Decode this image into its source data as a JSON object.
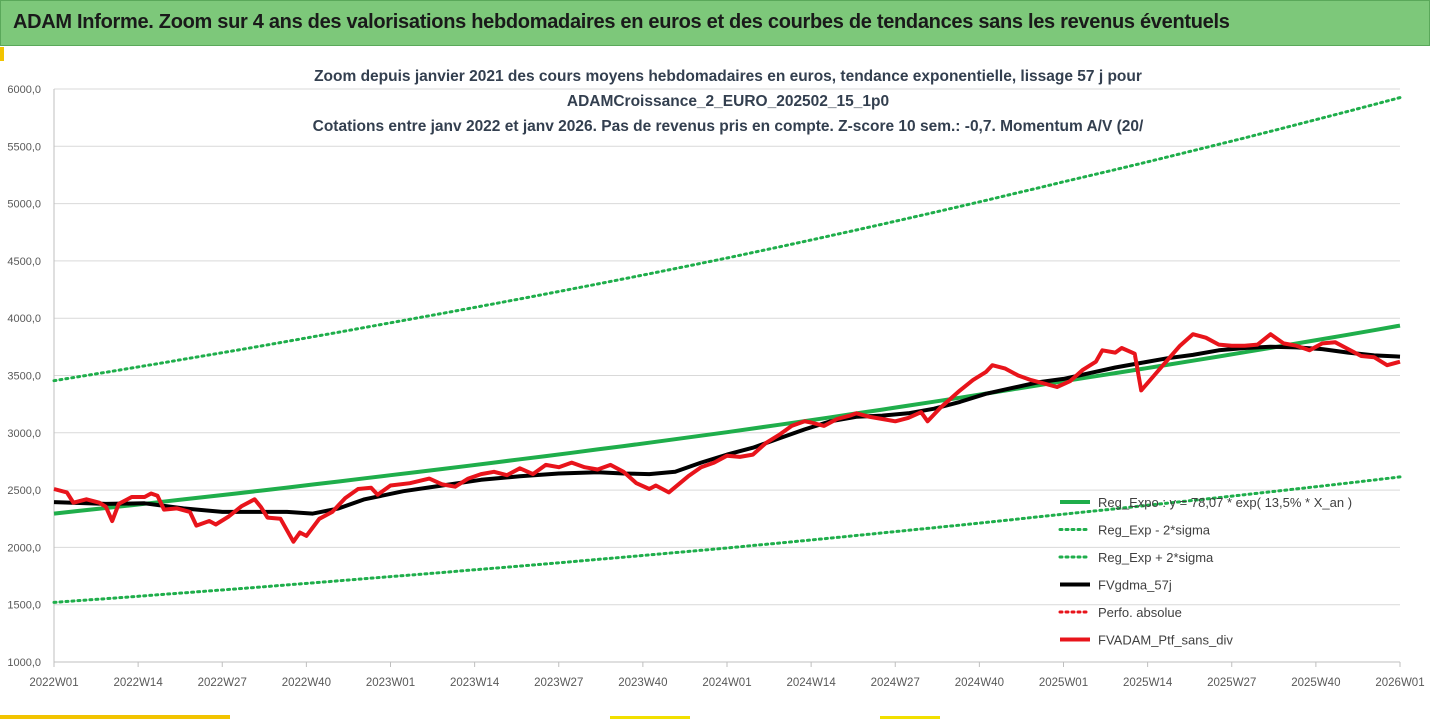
{
  "banner": {
    "title": "ADAM Informe. Zoom sur 4 ans des valorisations hebdomadaires en euros et des courbes de tendances sans les revenus éventuels"
  },
  "colors": {
    "green": "#1fae4b",
    "black": "#000000",
    "red": "#e8141b",
    "banner": "#7dc87a",
    "grid": "#d9d9d9"
  },
  "chart_data": {
    "type": "line",
    "title": [
      "Zoom depuis janvier 2021 des cours moyens hebdomadaires  en euros, tendance exponentielle, lissage 57 j pour",
      "ADAMCroissance_2_EURO_202502_15_1p0",
      "Cotations entre janv 2022 et janv 2026. Pas de revenus pris en compte. Z-score 10 sem.: -0,7. Momentum A/V (20/"
    ],
    "xlabel": "",
    "ylabel": "",
    "ylim": [
      1000,
      6000
    ],
    "yticks": [
      "1000,0",
      "1500,0",
      "2000,0",
      "2500,0",
      "3000,0",
      "3500,0",
      "4000,0",
      "4500,0",
      "5000,0",
      "5500,0",
      "6000,0"
    ],
    "x_range": [
      0,
      208
    ],
    "xticks": [
      {
        "pos": 0,
        "label": "2022W01"
      },
      {
        "pos": 13,
        "label": "2022W14"
      },
      {
        "pos": 26,
        "label": "2022W27"
      },
      {
        "pos": 39,
        "label": "2022W40"
      },
      {
        "pos": 52,
        "label": "2023W01"
      },
      {
        "pos": 65,
        "label": "2023W14"
      },
      {
        "pos": 78,
        "label": "2023W27"
      },
      {
        "pos": 91,
        "label": "2023W40"
      },
      {
        "pos": 104,
        "label": "2024W01"
      },
      {
        "pos": 117,
        "label": "2024W14"
      },
      {
        "pos": 130,
        "label": "2024W27"
      },
      {
        "pos": 143,
        "label": "2024W40"
      },
      {
        "pos": 156,
        "label": "2025W01"
      },
      {
        "pos": 169,
        "label": "2025W14"
      },
      {
        "pos": 182,
        "label": "2025W27"
      },
      {
        "pos": 195,
        "label": "2025W40"
      },
      {
        "pos": 208,
        "label": "2026W01"
      }
    ],
    "legend": [
      {
        "label": "Reg_Expo : y = 78,07 * exp( 13,5% *  X_an )",
        "color": "#1fae4b",
        "style": "solid",
        "width": 4
      },
      {
        "label": "Reg_Exp - 2*sigma",
        "color": "#1fae4b",
        "style": "dotted",
        "width": 3
      },
      {
        "label": "Reg_Exp + 2*sigma",
        "color": "#1fae4b",
        "style": "dotted",
        "width": 3
      },
      {
        "label": "FVgdma_57j",
        "color": "#000000",
        "style": "solid",
        "width": 4
      },
      {
        "label": "Perfo. absolue",
        "color": "#e8141b",
        "style": "dotted",
        "width": 3
      },
      {
        "label": "FVADAM_Ptf_sans_div",
        "color": "#e8141b",
        "style": "solid",
        "width": 4
      }
    ],
    "series": [
      {
        "name": "Reg_Expo",
        "color": "#1fae4b",
        "style": "solid",
        "width": 4,
        "points": [
          [
            0,
            2295
          ],
          [
            52,
            2630
          ],
          [
            104,
            3005
          ],
          [
            156,
            3450
          ],
          [
            208,
            3935
          ]
        ]
      },
      {
        "name": "Reg_Exp - 2*sigma",
        "color": "#1fae4b",
        "style": "dotted",
        "width": 3,
        "points": [
          [
            0,
            1520
          ],
          [
            52,
            1745
          ],
          [
            104,
            1995
          ],
          [
            156,
            2290
          ],
          [
            208,
            2615
          ]
        ]
      },
      {
        "name": "Reg_Exp + 2*sigma",
        "color": "#1fae4b",
        "style": "dotted",
        "width": 3,
        "points": [
          [
            0,
            3455
          ],
          [
            52,
            3960
          ],
          [
            104,
            4525
          ],
          [
            156,
            5190
          ],
          [
            208,
            5925
          ]
        ]
      },
      {
        "name": "FVgdma_57j",
        "color": "#000000",
        "style": "solid",
        "width": 4,
        "points": [
          [
            0,
            2395
          ],
          [
            8,
            2380
          ],
          [
            14,
            2385
          ],
          [
            20,
            2340
          ],
          [
            26,
            2310
          ],
          [
            30,
            2310
          ],
          [
            36,
            2310
          ],
          [
            40,
            2295
          ],
          [
            44,
            2340
          ],
          [
            48,
            2420
          ],
          [
            54,
            2490
          ],
          [
            60,
            2540
          ],
          [
            66,
            2590
          ],
          [
            72,
            2620
          ],
          [
            78,
            2645
          ],
          [
            84,
            2655
          ],
          [
            88,
            2645
          ],
          [
            92,
            2640
          ],
          [
            96,
            2660
          ],
          [
            100,
            2740
          ],
          [
            104,
            2810
          ],
          [
            108,
            2870
          ],
          [
            112,
            2950
          ],
          [
            116,
            3030
          ],
          [
            120,
            3100
          ],
          [
            124,
            3140
          ],
          [
            128,
            3150
          ],
          [
            132,
            3170
          ],
          [
            136,
            3210
          ],
          [
            140,
            3270
          ],
          [
            144,
            3340
          ],
          [
            148,
            3390
          ],
          [
            152,
            3440
          ],
          [
            156,
            3470
          ],
          [
            160,
            3520
          ],
          [
            164,
            3570
          ],
          [
            168,
            3610
          ],
          [
            172,
            3650
          ],
          [
            176,
            3680
          ],
          [
            180,
            3720
          ],
          [
            184,
            3740
          ],
          [
            188,
            3750
          ],
          [
            192,
            3745
          ],
          [
            196,
            3730
          ],
          [
            200,
            3700
          ],
          [
            204,
            3675
          ],
          [
            208,
            3665
          ]
        ]
      },
      {
        "name": "FVADAM_Ptf_sans_div",
        "color": "#e8141b",
        "style": "solid",
        "width": 4,
        "points": [
          [
            0,
            2510
          ],
          [
            2,
            2480
          ],
          [
            3,
            2390
          ],
          [
            5,
            2420
          ],
          [
            7,
            2390
          ],
          [
            8,
            2355
          ],
          [
            9,
            2230
          ],
          [
            10,
            2380
          ],
          [
            12,
            2440
          ],
          [
            14,
            2440
          ],
          [
            15,
            2470
          ],
          [
            16,
            2450
          ],
          [
            17,
            2330
          ],
          [
            19,
            2340
          ],
          [
            21,
            2310
          ],
          [
            22,
            2190
          ],
          [
            24,
            2230
          ],
          [
            25,
            2200
          ],
          [
            27,
            2270
          ],
          [
            29,
            2360
          ],
          [
            31,
            2420
          ],
          [
            32,
            2350
          ],
          [
            33,
            2260
          ],
          [
            35,
            2250
          ],
          [
            37,
            2050
          ],
          [
            38,
            2130
          ],
          [
            39,
            2100
          ],
          [
            41,
            2250
          ],
          [
            43,
            2310
          ],
          [
            45,
            2430
          ],
          [
            47,
            2510
          ],
          [
            49,
            2520
          ],
          [
            50,
            2460
          ],
          [
            52,
            2540
          ],
          [
            55,
            2560
          ],
          [
            58,
            2600
          ],
          [
            60,
            2550
          ],
          [
            62,
            2530
          ],
          [
            64,
            2600
          ],
          [
            66,
            2640
          ],
          [
            68,
            2660
          ],
          [
            70,
            2630
          ],
          [
            72,
            2690
          ],
          [
            74,
            2640
          ],
          [
            76,
            2720
          ],
          [
            78,
            2700
          ],
          [
            80,
            2740
          ],
          [
            82,
            2700
          ],
          [
            84,
            2680
          ],
          [
            86,
            2720
          ],
          [
            88,
            2660
          ],
          [
            90,
            2560
          ],
          [
            92,
            2510
          ],
          [
            93,
            2540
          ],
          [
            95,
            2480
          ],
          [
            98,
            2620
          ],
          [
            100,
            2700
          ],
          [
            102,
            2740
          ],
          [
            104,
            2800
          ],
          [
            106,
            2790
          ],
          [
            108,
            2810
          ],
          [
            110,
            2910
          ],
          [
            112,
            2980
          ],
          [
            114,
            3060
          ],
          [
            116,
            3100
          ],
          [
            117,
            3090
          ],
          [
            119,
            3060
          ],
          [
            121,
            3120
          ],
          [
            123,
            3150
          ],
          [
            124,
            3170
          ],
          [
            126,
            3140
          ],
          [
            128,
            3120
          ],
          [
            130,
            3100
          ],
          [
            132,
            3130
          ],
          [
            134,
            3180
          ],
          [
            135,
            3100
          ],
          [
            137,
            3220
          ],
          [
            139,
            3320
          ],
          [
            140,
            3370
          ],
          [
            142,
            3460
          ],
          [
            144,
            3530
          ],
          [
            145,
            3590
          ],
          [
            147,
            3560
          ],
          [
            149,
            3500
          ],
          [
            151,
            3460
          ],
          [
            153,
            3430
          ],
          [
            155,
            3400
          ],
          [
            157,
            3450
          ],
          [
            159,
            3550
          ],
          [
            161,
            3620
          ],
          [
            162,
            3720
          ],
          [
            164,
            3700
          ],
          [
            165,
            3740
          ],
          [
            167,
            3690
          ],
          [
            168,
            3370
          ],
          [
            170,
            3500
          ],
          [
            172,
            3630
          ],
          [
            174,
            3760
          ],
          [
            176,
            3860
          ],
          [
            178,
            3830
          ],
          [
            180,
            3770
          ],
          [
            182,
            3760
          ],
          [
            184,
            3760
          ],
          [
            186,
            3770
          ],
          [
            188,
            3860
          ],
          [
            190,
            3780
          ],
          [
            192,
            3760
          ],
          [
            194,
            3720
          ],
          [
            196,
            3780
          ],
          [
            198,
            3790
          ],
          [
            200,
            3730
          ],
          [
            202,
            3670
          ],
          [
            204,
            3660
          ],
          [
            206,
            3590
          ],
          [
            208,
            3620
          ]
        ]
      },
      {
        "name": "Perfo. absolue",
        "color": "#e8141b",
        "style": "dotted",
        "width": 3,
        "points": []
      }
    ]
  }
}
